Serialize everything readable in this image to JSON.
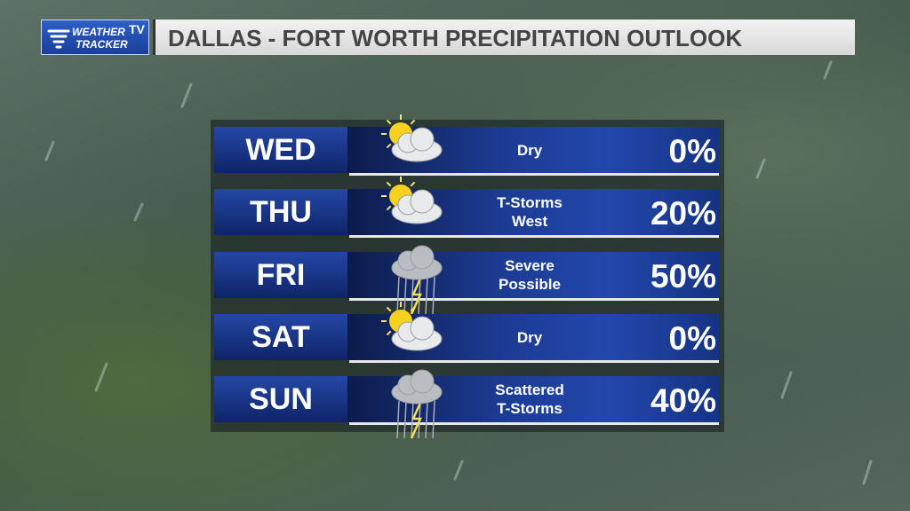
{
  "header": {
    "logo": {
      "line1": "WEATHER",
      "badge": "TV",
      "line2": "TRACKER"
    },
    "title": "DALLAS - FORT WORTH PRECIPITATION OUTLOOK"
  },
  "table": {
    "rows": [
      {
        "day": "WED",
        "condition": [
          "Dry"
        ],
        "chance": "0%"
      },
      {
        "day": "THU",
        "condition": [
          "T-Storms",
          "West"
        ],
        "chance": "20%"
      },
      {
        "day": "FRI",
        "condition": [
          "Severe",
          "Possible"
        ],
        "chance": "50%"
      },
      {
        "day": "SAT",
        "condition": [
          "Dry"
        ],
        "chance": "0%"
      },
      {
        "day": "SUN",
        "condition": [
          "Scattered",
          "T-Storms"
        ],
        "chance": "40%"
      }
    ]
  }
}
